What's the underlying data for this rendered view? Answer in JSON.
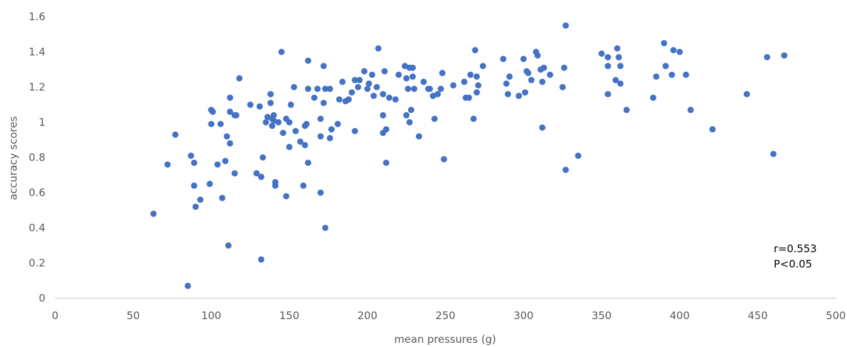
{
  "chart_data": {
    "type": "scatter",
    "title": "",
    "xlabel": "mean pressures (g)",
    "ylabel": "accuracy scores",
    "xlim": [
      0,
      500
    ],
    "ylim": [
      0,
      1.6
    ],
    "x_ticks": [
      "0",
      "50",
      "100",
      "150",
      "200",
      "250",
      "300",
      "350",
      "400",
      "450",
      "500"
    ],
    "y_ticks": [
      "0",
      "0.2",
      "0.4",
      "0.6",
      "0.8",
      "1",
      "1.2",
      "1.4",
      "1.6"
    ],
    "grid": false,
    "legend": "none",
    "marker_color": "#4472C4",
    "annotations": [
      "r=0.553",
      "P<0.05"
    ],
    "points": [
      [
        63,
        0.48
      ],
      [
        72,
        0.76
      ],
      [
        77,
        0.93
      ],
      [
        85,
        0.07
      ],
      [
        87,
        0.81
      ],
      [
        89,
        0.77
      ],
      [
        89,
        0.64
      ],
      [
        90,
        0.52
      ],
      [
        93,
        0.56
      ],
      [
        99,
        0.65
      ],
      [
        100,
        1.07
      ],
      [
        100,
        0.99
      ],
      [
        101,
        1.06
      ],
      [
        104,
        0.76
      ],
      [
        106,
        0.99
      ],
      [
        107,
        0.57
      ],
      [
        109,
        0.78
      ],
      [
        110,
        0.92
      ],
      [
        111,
        0.3
      ],
      [
        112,
        0.88
      ],
      [
        112,
        1.14
      ],
      [
        112,
        1.06
      ],
      [
        115,
        1.04
      ],
      [
        115,
        0.71
      ],
      [
        116,
        1.04
      ],
      [
        118,
        1.25
      ],
      [
        125,
        1.1
      ],
      [
        129,
        0.71
      ],
      [
        131,
        1.09
      ],
      [
        132,
        0.22
      ],
      [
        132,
        0.69
      ],
      [
        133,
        0.8
      ],
      [
        135,
        1.0
      ],
      [
        136,
        1.03
      ],
      [
        138,
        1.16
      ],
      [
        138,
        1.11
      ],
      [
        139,
        1.02
      ],
      [
        139,
        0.98
      ],
      [
        140,
        1.04
      ],
      [
        140,
        1.01
      ],
      [
        141,
        0.66
      ],
      [
        141,
        0.64
      ],
      [
        143,
        1.0
      ],
      [
        145,
        1.4
      ],
      [
        146,
        0.94
      ],
      [
        148,
        0.58
      ],
      [
        148,
        1.02
      ],
      [
        150,
        1.0
      ],
      [
        150,
        0.86
      ],
      [
        151,
        1.1
      ],
      [
        153,
        1.2
      ],
      [
        154,
        0.95
      ],
      [
        157,
        0.89
      ],
      [
        159,
        0.64
      ],
      [
        160,
        0.98
      ],
      [
        160,
        0.87
      ],
      [
        161,
        0.99
      ],
      [
        162,
        0.77
      ],
      [
        162,
        1.19
      ],
      [
        162,
        1.35
      ],
      [
        166,
        1.14
      ],
      [
        168,
        1.19
      ],
      [
        170,
        1.02
      ],
      [
        170,
        0.92
      ],
      [
        170,
        0.6
      ],
      [
        172,
        1.11
      ],
      [
        172,
        1.32
      ],
      [
        173,
        0.4
      ],
      [
        173,
        1.19
      ],
      [
        176,
        0.91
      ],
      [
        176,
        1.19
      ],
      [
        177,
        0.96
      ],
      [
        181,
        0.99
      ],
      [
        182,
        1.13
      ],
      [
        184,
        1.23
      ],
      [
        186,
        1.12
      ],
      [
        188,
        1.13
      ],
      [
        190,
        1.17
      ],
      [
        192,
        1.24
      ],
      [
        192,
        0.95
      ],
      [
        194,
        1.2
      ],
      [
        195,
        1.24
      ],
      [
        198,
        1.29
      ],
      [
        200,
        1.19
      ],
      [
        201,
        1.22
      ],
      [
        203,
        1.27
      ],
      [
        204,
        1.15
      ],
      [
        206,
        1.2
      ],
      [
        207,
        1.42
      ],
      [
        210,
        1.16
      ],
      [
        210,
        1.04
      ],
      [
        210,
        0.94
      ],
      [
        211,
        1.29
      ],
      [
        212,
        0.96
      ],
      [
        212,
        0.77
      ],
      [
        214,
        1.14
      ],
      [
        218,
        1.13
      ],
      [
        220,
        1.27
      ],
      [
        224,
        1.32
      ],
      [
        225,
        1.25
      ],
      [
        225,
        1.04
      ],
      [
        226,
        1.19
      ],
      [
        227,
        1.31
      ],
      [
        227,
        1.0
      ],
      [
        228,
        1.07
      ],
      [
        229,
        1.26
      ],
      [
        229,
        1.31
      ],
      [
        230,
        1.19
      ],
      [
        233,
        0.92
      ],
      [
        236,
        1.23
      ],
      [
        239,
        1.19
      ],
      [
        240,
        1.19
      ],
      [
        242,
        1.15
      ],
      [
        243,
        1.02
      ],
      [
        245,
        1.16
      ],
      [
        247,
        1.19
      ],
      [
        248,
        1.28
      ],
      [
        249,
        0.79
      ],
      [
        255,
        1.21
      ],
      [
        262,
        1.23
      ],
      [
        263,
        1.14
      ],
      [
        265,
        1.14
      ],
      [
        266,
        1.27
      ],
      [
        268,
        1.02
      ],
      [
        269,
        1.41
      ],
      [
        270,
        1.17
      ],
      [
        270,
        1.26
      ],
      [
        271,
        1.21
      ],
      [
        274,
        1.32
      ],
      [
        287,
        1.36
      ],
      [
        289,
        1.22
      ],
      [
        290,
        1.16
      ],
      [
        291,
        1.26
      ],
      [
        297,
        1.15
      ],
      [
        300,
        1.36
      ],
      [
        301,
        1.17
      ],
      [
        302,
        1.29
      ],
      [
        303,
        1.28
      ],
      [
        305,
        1.24
      ],
      [
        308,
        1.4
      ],
      [
        309,
        1.38
      ],
      [
        311,
        1.3
      ],
      [
        312,
        0.97
      ],
      [
        312,
        1.23
      ],
      [
        313,
        1.31
      ],
      [
        317,
        1.27
      ],
      [
        325,
        1.2
      ],
      [
        326,
        1.31
      ],
      [
        327,
        1.55
      ],
      [
        327,
        0.73
      ],
      [
        335,
        0.81
      ],
      [
        350,
        1.39
      ],
      [
        354,
        1.16
      ],
      [
        354,
        1.37
      ],
      [
        354,
        1.32
      ],
      [
        359,
        1.24
      ],
      [
        360,
        1.42
      ],
      [
        361,
        1.37
      ],
      [
        362,
        1.22
      ],
      [
        362,
        1.32
      ],
      [
        366,
        1.07
      ],
      [
        383,
        1.14
      ],
      [
        385,
        1.26
      ],
      [
        390,
        1.45
      ],
      [
        391,
        1.32
      ],
      [
        395,
        1.27
      ],
      [
        396,
        1.41
      ],
      [
        400,
        1.4
      ],
      [
        404,
        1.27
      ],
      [
        407,
        1.07
      ],
      [
        421,
        0.96
      ],
      [
        443,
        1.16
      ],
      [
        456,
        1.37
      ],
      [
        460,
        0.82
      ],
      [
        467,
        1.38
      ]
    ]
  }
}
